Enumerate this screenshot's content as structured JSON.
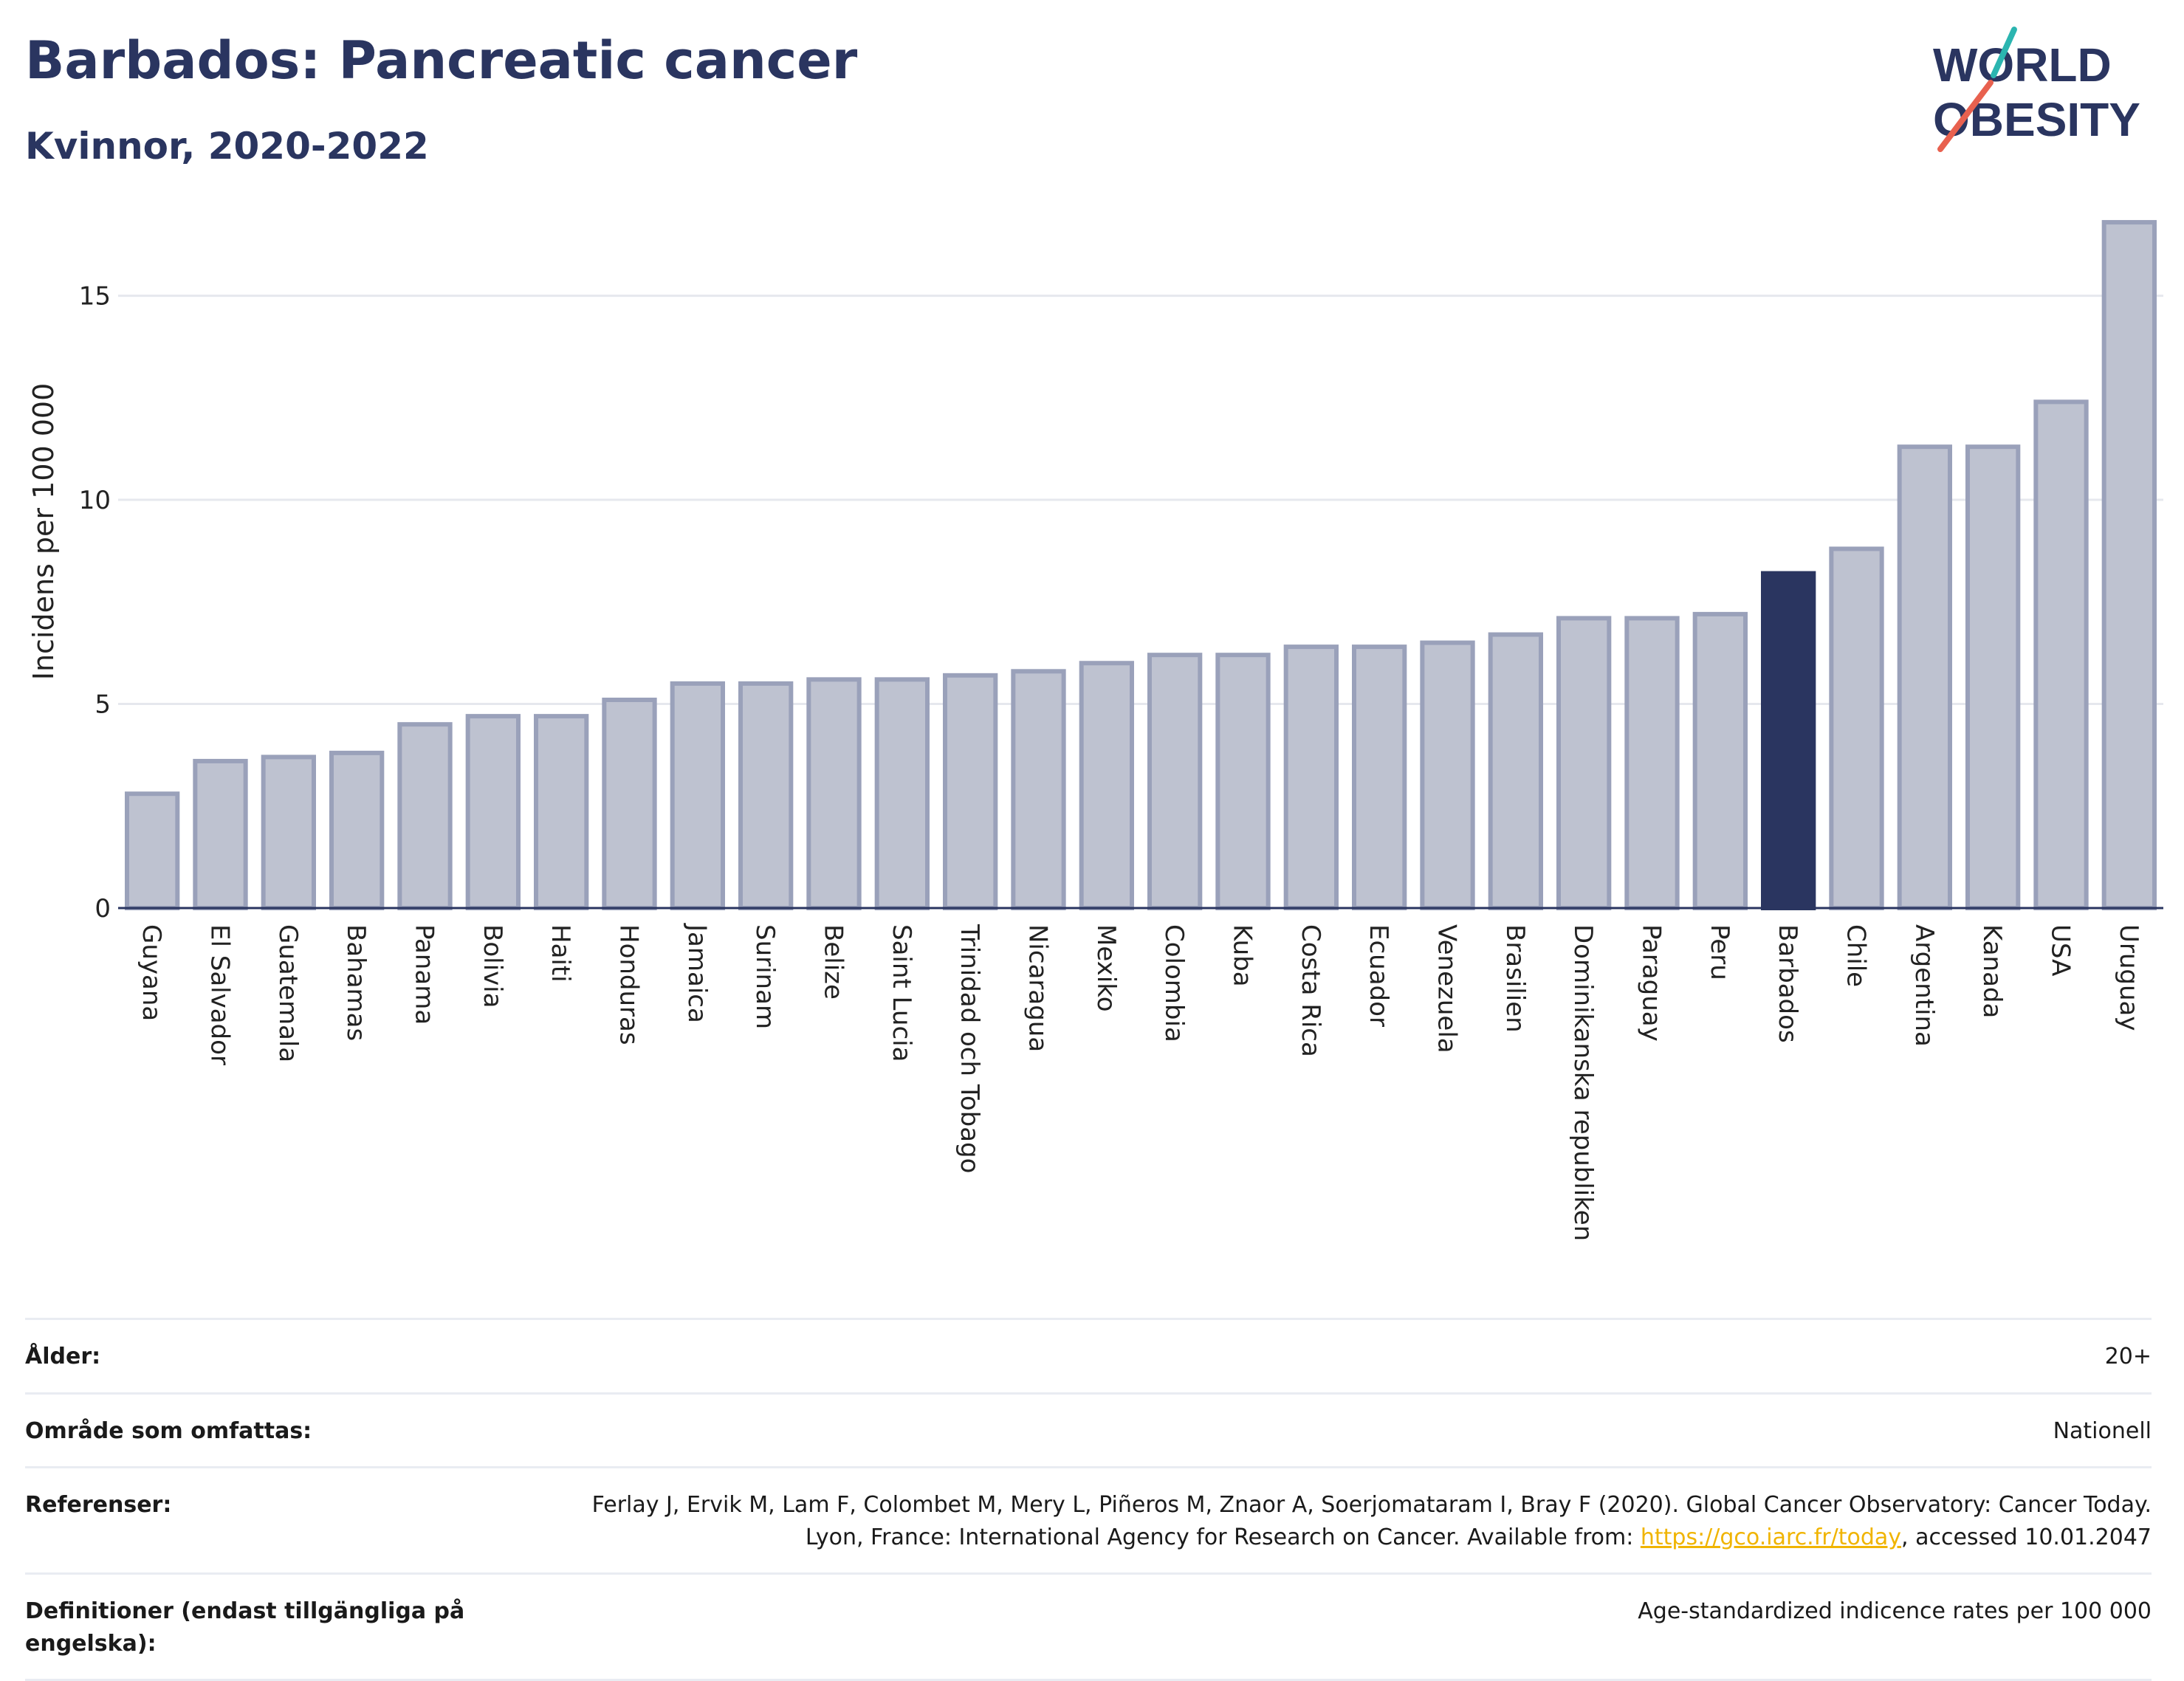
{
  "header": {
    "title": "Barbados: Pancreatic cancer",
    "subtitle": "Kvinnor, 2020-2022"
  },
  "logo": {
    "line1": "WORLD",
    "line2": "OBESITY",
    "accent_colors": [
      "#2bb5b0",
      "#e8614f"
    ],
    "text_color": "#2a3560"
  },
  "colors": {
    "bar": "#bec2d0",
    "bar_stroke": "#9aa1ba",
    "highlight": "#2a3560",
    "grid": "#e6e8ee"
  },
  "chart_data": {
    "type": "bar",
    "ylabel": "Incidens per 100 000",
    "ylim": [
      0,
      17
    ],
    "yticks": [
      0,
      5,
      10,
      15
    ],
    "highlight": "Barbados",
    "categories": [
      "Guyana",
      "El Salvador",
      "Guatemala",
      "Bahamas",
      "Panama",
      "Bolivia",
      "Haiti",
      "Honduras",
      "Jamaica",
      "Surinam",
      "Belize",
      "Saint Lucia",
      "Trinidad och Tobago",
      "Nicaragua",
      "Mexiko",
      "Colombia",
      "Kuba",
      "Costa Rica",
      "Ecuador",
      "Venezuela",
      "Brasilien",
      "Dominikanska republiken",
      "Paraguay",
      "Peru",
      "Barbados",
      "Chile",
      "Argentina",
      "Kanada",
      "USA",
      "Uruguay"
    ],
    "values": [
      2.8,
      3.6,
      3.7,
      3.8,
      4.5,
      4.7,
      4.7,
      5.1,
      5.5,
      5.5,
      5.6,
      5.6,
      5.7,
      5.8,
      6.0,
      6.2,
      6.2,
      6.4,
      6.4,
      6.5,
      6.7,
      7.1,
      7.1,
      7.2,
      8.2,
      8.8,
      11.3,
      11.3,
      12.4,
      16.8
    ]
  },
  "meta": {
    "age_label": "Ålder:",
    "age_value": "20+",
    "area_label": "Område som omfattas:",
    "area_value": "Nationell",
    "refs_label": "Referenser:",
    "refs_text_before": "Ferlay J, Ervik M, Lam F, Colombet M, Mery L, Piñeros M, Znaor A, Soerjomataram I, Bray F (2020). Global Cancer Observatory: Cancer Today. Lyon, France: International Agency for Research on Cancer. Available from: ",
    "refs_link": "https://gco.iarc.fr/today",
    "refs_text_after": ", accessed 10.01.2047",
    "defs_label": "Definitioner (endast tillgängliga på engelska):",
    "defs_value": "Age-standardized indicence rates per 100 000"
  }
}
